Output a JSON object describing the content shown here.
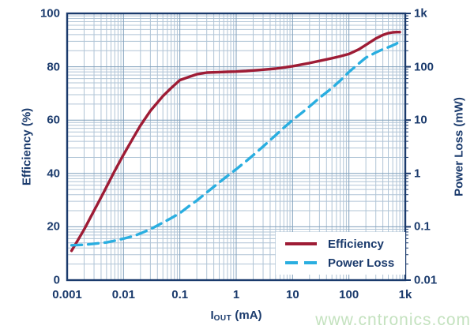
{
  "watermark": "www.cntronics.com",
  "colors": {
    "text_navy": "#1a3a6c",
    "grid_major": "#7f9fbb",
    "grid_minor": "#b0c4d6",
    "plot_border": "#1a3a6c",
    "efficiency_line": "#9e1c35",
    "power_loss_line": "#2aaee0",
    "watermark_green": "#c4e2bf",
    "background": "#ffffff"
  },
  "chart_data": {
    "type": "line",
    "title": "",
    "x_axis": {
      "label_main": "I",
      "label_sub": "OUT",
      "label_unit": " (mA)",
      "scale": "log",
      "min": 0.001,
      "max": 1000,
      "ticks": [
        {
          "v": 0.001,
          "label": "0.001"
        },
        {
          "v": 0.01,
          "label": "0.01"
        },
        {
          "v": 0.1,
          "label": "0.1"
        },
        {
          "v": 1,
          "label": "1"
        },
        {
          "v": 10,
          "label": "10"
        },
        {
          "v": 100,
          "label": "100"
        },
        {
          "v": 1000,
          "label": "1k"
        }
      ]
    },
    "y_left_axis": {
      "label": "Efficiency (%)",
      "scale": "linear",
      "min": 0,
      "max": 100,
      "ticks": [
        {
          "v": 100,
          "label": "100"
        },
        {
          "v": 80,
          "label": "80"
        },
        {
          "v": 60,
          "label": "60"
        },
        {
          "v": 40,
          "label": "40"
        },
        {
          "v": 20,
          "label": "20"
        },
        {
          "v": 0,
          "label": "0"
        }
      ]
    },
    "y_right_axis": {
      "label": "Power Loss (mW)",
      "scale": "log",
      "min": 0.01,
      "max": 1000,
      "ticks": [
        {
          "v": 1000,
          "label": "1k"
        },
        {
          "v": 100,
          "label": "100"
        },
        {
          "v": 10,
          "label": "10"
        },
        {
          "v": 1,
          "label": "1"
        },
        {
          "v": 0.1,
          "label": "0.1"
        },
        {
          "v": 0.01,
          "label": "0.01"
        }
      ]
    },
    "grid": "log-major-minor-both-axes",
    "legend": {
      "position": "bottom-right",
      "items": [
        {
          "label": "Efficiency",
          "style": "solid",
          "color": "#9e1c35"
        },
        {
          "label": "Power Loss",
          "style": "dashed",
          "color": "#2aaee0"
        }
      ]
    },
    "series": [
      {
        "name": "Efficiency",
        "axis": "left",
        "units": "%",
        "color": "#9e1c35",
        "style": "solid",
        "points": [
          [
            0.0012,
            11
          ],
          [
            0.0015,
            14.5
          ],
          [
            0.002,
            19
          ],
          [
            0.003,
            26
          ],
          [
            0.004,
            31
          ],
          [
            0.005,
            35
          ],
          [
            0.007,
            41
          ],
          [
            0.01,
            47
          ],
          [
            0.015,
            53.5
          ],
          [
            0.02,
            58
          ],
          [
            0.03,
            63.5
          ],
          [
            0.05,
            69
          ],
          [
            0.07,
            72
          ],
          [
            0.1,
            75
          ],
          [
            0.15,
            76.3
          ],
          [
            0.2,
            77.2
          ],
          [
            0.3,
            77.8
          ],
          [
            0.5,
            78
          ],
          [
            0.7,
            78.1
          ],
          [
            1,
            78.2
          ],
          [
            1.5,
            78.4
          ],
          [
            2,
            78.6
          ],
          [
            3,
            78.9
          ],
          [
            5,
            79.3
          ],
          [
            7,
            79.7
          ],
          [
            10,
            80.2
          ],
          [
            15,
            80.9
          ],
          [
            20,
            81.4
          ],
          [
            30,
            82.2
          ],
          [
            50,
            83.2
          ],
          [
            70,
            83.9
          ],
          [
            100,
            84.8
          ],
          [
            150,
            86.5
          ],
          [
            200,
            88.2
          ],
          [
            300,
            90.6
          ],
          [
            400,
            91.9
          ],
          [
            500,
            92.6
          ],
          [
            600,
            92.9
          ],
          [
            700,
            93
          ],
          [
            800,
            93
          ]
        ]
      },
      {
        "name": "Power Loss",
        "axis": "right",
        "units": "mW",
        "color": "#2aaee0",
        "style": "dashed",
        "points": [
          [
            0.0012,
            0.045
          ],
          [
            0.002,
            0.046
          ],
          [
            0.003,
            0.048
          ],
          [
            0.005,
            0.051
          ],
          [
            0.007,
            0.055
          ],
          [
            0.01,
            0.06
          ],
          [
            0.015,
            0.067
          ],
          [
            0.02,
            0.075
          ],
          [
            0.03,
            0.09
          ],
          [
            0.05,
            0.12
          ],
          [
            0.07,
            0.145
          ],
          [
            0.1,
            0.18
          ],
          [
            0.15,
            0.25
          ],
          [
            0.2,
            0.31
          ],
          [
            0.3,
            0.44
          ],
          [
            0.5,
            0.68
          ],
          [
            0.7,
            0.9
          ],
          [
            1,
            1.2
          ],
          [
            1.5,
            1.7
          ],
          [
            2,
            2.2
          ],
          [
            3,
            3.2
          ],
          [
            5,
            5.2
          ],
          [
            7,
            7.2
          ],
          [
            10,
            10
          ],
          [
            15,
            14
          ],
          [
            20,
            18
          ],
          [
            30,
            26
          ],
          [
            50,
            40
          ],
          [
            70,
            55
          ],
          [
            100,
            80
          ],
          [
            150,
            115
          ],
          [
            200,
            148
          ],
          [
            300,
            185
          ],
          [
            400,
            212
          ],
          [
            500,
            232
          ],
          [
            600,
            252
          ],
          [
            700,
            272
          ],
          [
            800,
            300
          ]
        ]
      }
    ]
  }
}
